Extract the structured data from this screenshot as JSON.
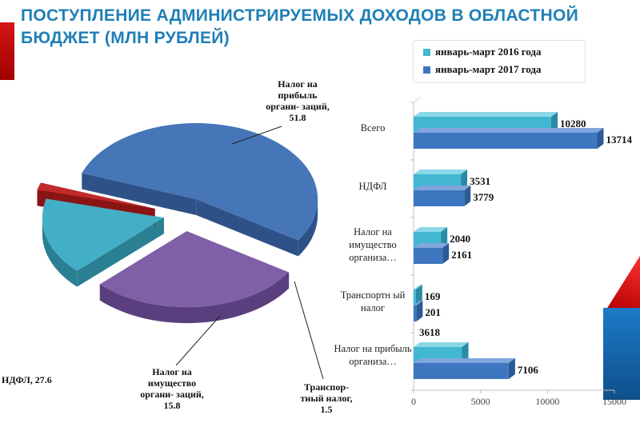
{
  "title": "ПОСТУПЛЕНИЕ АДМИНИСТРИРУЕМЫХ ДОХОДОВ В ОБЛАСТНОЙ БЮДЖЕТ (МЛН РУБЛЕЙ)",
  "colors": {
    "title": "#1f7fb6",
    "series2016": "#41b7d1",
    "series2017": "#3e77bf",
    "pie_profit": "#4676b8",
    "pie_ndfl": "#7f5fa6",
    "pie_property": "#42afc7",
    "pie_transport": "#c02a2a"
  },
  "chart_data": [
    {
      "type": "pie",
      "title": "",
      "slices": [
        {
          "label": "Налог на прибыль органи- заций, 51.8",
          "value": 51.8
        },
        {
          "label": "НДФЛ, 27.6",
          "value": 27.6
        },
        {
          "label": "Налог на имущество органи- заций, 15.8",
          "value": 15.8
        },
        {
          "label": "Транспор- тный налог, 1.5",
          "value": 1.5
        }
      ],
      "style": "3d, exploded"
    },
    {
      "type": "bar",
      "orientation": "horizontal",
      "categories": [
        "Всего",
        "НДФЛ",
        "Налог на имущество организа…",
        "Транспортный налог",
        "Налог на прибыль организа…"
      ],
      "category_labels": [
        "Всего",
        "НДФЛ",
        "Налог на имущество организа…",
        "Транспортн ый налог",
        "Налог на прибыль организа…"
      ],
      "series": [
        {
          "name": "январь-март 2016 года",
          "values": [
            10280,
            3531,
            2040,
            169,
            3618
          ]
        },
        {
          "name": "январь-март 2017 года",
          "values": [
            13714,
            3779,
            2161,
            201,
            7106
          ]
        }
      ],
      "xlim": [
        0,
        15000
      ],
      "xticks": [
        "0",
        "5000",
        "10000",
        "15000"
      ],
      "legend": "top",
      "grid": false
    }
  ]
}
